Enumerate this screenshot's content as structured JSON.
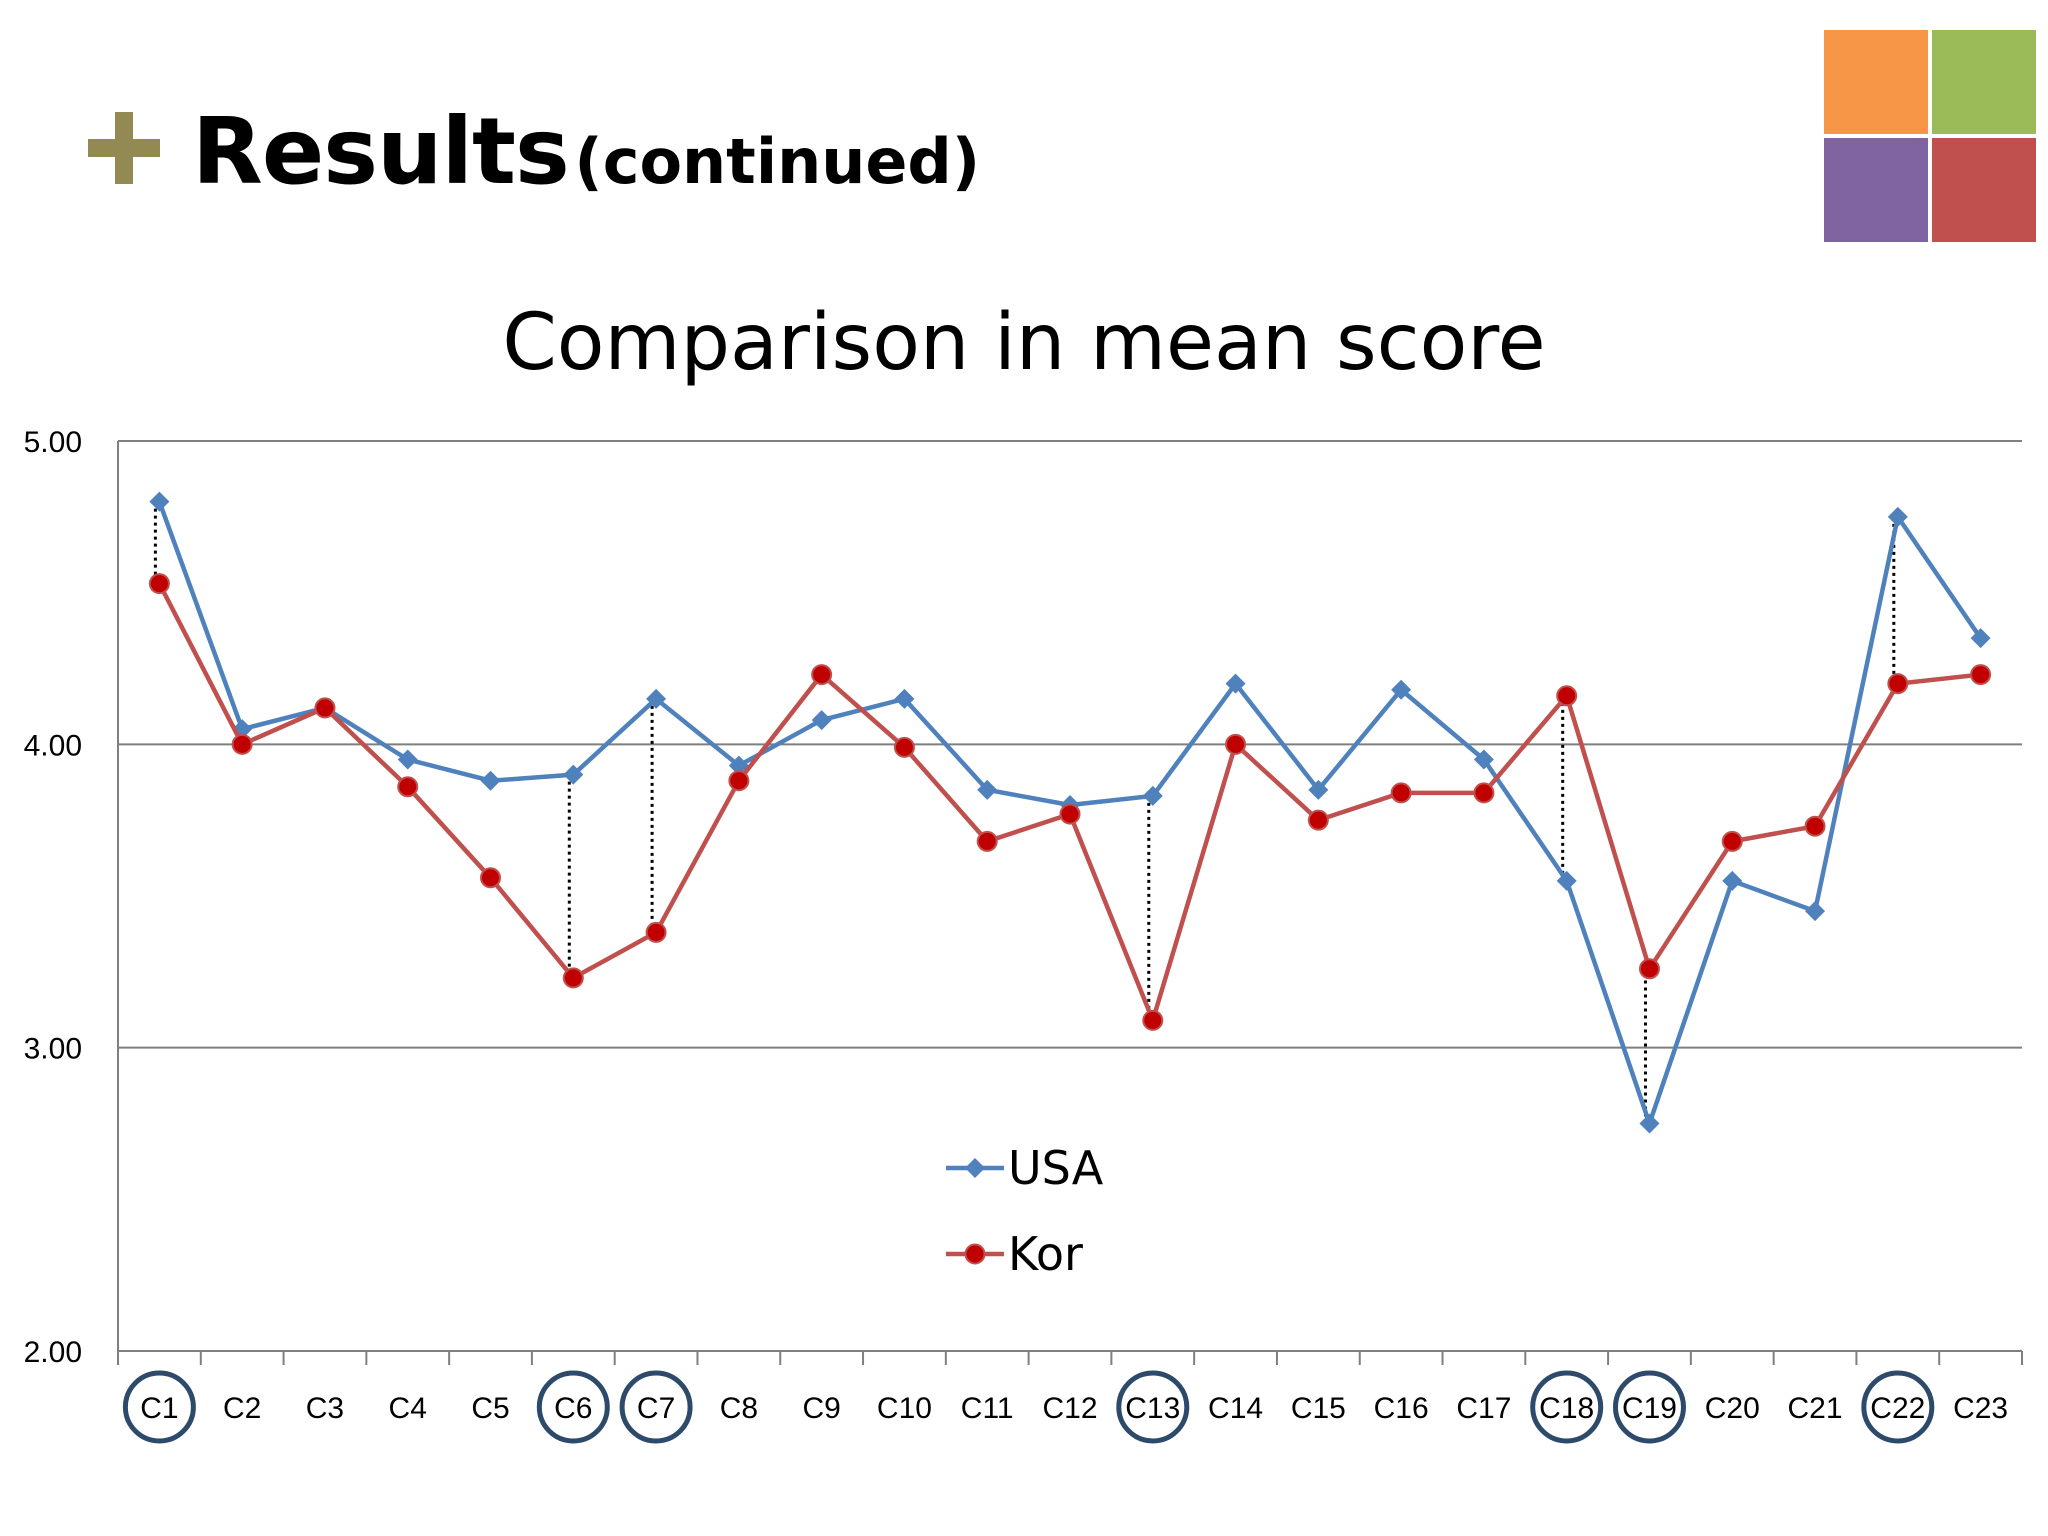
{
  "slide": {
    "title_main": "Results",
    "title_sub": "(continued)",
    "icon": "plus-icon",
    "tiles": [
      "#f79646",
      "#9bbb59",
      "#8064a2",
      "#c0504d"
    ]
  },
  "chart_data": {
    "type": "line",
    "title": "Comparison in mean score",
    "xlabel": "",
    "ylabel": "",
    "ylim": [
      2.0,
      5.0
    ],
    "yticks": [
      "2.00",
      "3.00",
      "4.00",
      "5.00"
    ],
    "grid": true,
    "legend_position": "center-bottom",
    "categories": [
      "C1",
      "C2",
      "C3",
      "C4",
      "C5",
      "C6",
      "C7",
      "C8",
      "C9",
      "C10",
      "C11",
      "C12",
      "C13",
      "C14",
      "C15",
      "C16",
      "C17",
      "C18",
      "C19",
      "C20",
      "C21",
      "C22",
      "C23"
    ],
    "series": [
      {
        "name": "USA",
        "color": "#4f81bd",
        "marker": "diamond",
        "values": [
          4.8,
          4.05,
          4.12,
          3.95,
          3.88,
          3.9,
          4.15,
          3.93,
          4.08,
          4.15,
          3.85,
          3.8,
          3.83,
          4.2,
          3.85,
          4.18,
          3.95,
          3.55,
          2.75,
          3.55,
          3.45,
          4.75,
          4.35
        ]
      },
      {
        "name": "Kor",
        "color": "#c0504d",
        "marker": "circle",
        "values": [
          4.53,
          4.0,
          4.12,
          3.86,
          3.56,
          3.23,
          3.38,
          3.88,
          4.23,
          3.99,
          3.68,
          3.77,
          3.09,
          4.0,
          3.75,
          3.84,
          3.84,
          4.16,
          3.26,
          3.68,
          3.73,
          4.2,
          4.23
        ]
      }
    ],
    "highlighted_categories": [
      "C1",
      "C6",
      "C7",
      "C13",
      "C18",
      "C19",
      "C22"
    ]
  }
}
